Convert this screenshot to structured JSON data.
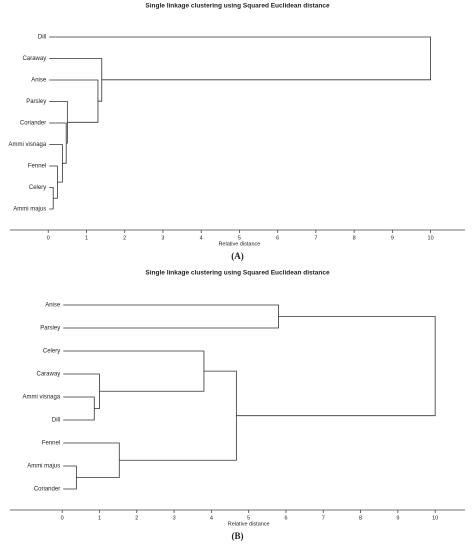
{
  "chart_data": [
    {
      "type": "dendrogram",
      "title": "Single linkage clustering using Squared Euclidean distance",
      "x_label": "Relative distance",
      "caption": "(A)",
      "leaves": [
        "Dill",
        "Caraway",
        "Anise",
        "Parsley",
        "Coriander",
        "Ammi visnaga",
        "Fennel",
        "Celery",
        "Ammi majus"
      ],
      "label_colors": [
        "#3a3ad0",
        "#b03040",
        "#2a8a2a",
        "#222222",
        "#b03040",
        "#222222",
        "#a020a0",
        "#2a8a2a",
        "#222222"
      ],
      "merges": [
        {
          "join": [
            7,
            8
          ],
          "height": 0.13
        },
        {
          "join": [
            6,
            9
          ],
          "height": 0.24
        },
        {
          "join": [
            5,
            10
          ],
          "height": 0.37
        },
        {
          "join": [
            4,
            11
          ],
          "height": 0.47
        },
        {
          "join": [
            3,
            12
          ],
          "height": 0.5
        },
        {
          "join": [
            2,
            13
          ],
          "height": 1.3
        },
        {
          "join": [
            1,
            14
          ],
          "height": 1.4
        },
        {
          "join": [
            0,
            15
          ],
          "height": 10
        }
      ],
      "xlim": [
        -1,
        10.9
      ],
      "xticks": [
        0,
        1,
        2,
        3,
        4,
        5,
        6,
        7,
        8,
        9,
        10
      ],
      "line_color": "#333333"
    },
    {
      "type": "dendrogram",
      "title": "Single linkage clustering using Squared Euclidean distance",
      "x_label": "Relative distance",
      "caption": "(B)",
      "leaves": [
        "Anise",
        "Parsley",
        "Celery",
        "Caraway",
        "Ammi visnaga",
        "Dill",
        "Fennel",
        "Ammi majus",
        "Coriander"
      ],
      "label_colors": [
        "#b03040",
        "#3a3ad0",
        "#2a8a2a",
        "#b03040",
        "#a020a0",
        "#222222",
        "#222222",
        "#2a8a2a",
        "#222222"
      ],
      "merges": [
        {
          "join": [
            7,
            8
          ],
          "height": 0.38
        },
        {
          "join": [
            4,
            5
          ],
          "height": 0.86
        },
        {
          "join": [
            3,
            10
          ],
          "height": 1.0
        },
        {
          "join": [
            6,
            9
          ],
          "height": 1.53
        },
        {
          "join": [
            2,
            11
          ],
          "height": 3.8
        },
        {
          "join": [
            13,
            12
          ],
          "height": 4.67
        },
        {
          "join": [
            0,
            1
          ],
          "height": 5.8
        },
        {
          "join": [
            15,
            14
          ],
          "height": 10
        }
      ],
      "xlim": [
        -1.4,
        10.8
      ],
      "xticks": [
        0,
        1,
        2,
        3,
        4,
        5,
        6,
        7,
        8,
        9,
        10
      ],
      "line_color": "#333333"
    }
  ]
}
